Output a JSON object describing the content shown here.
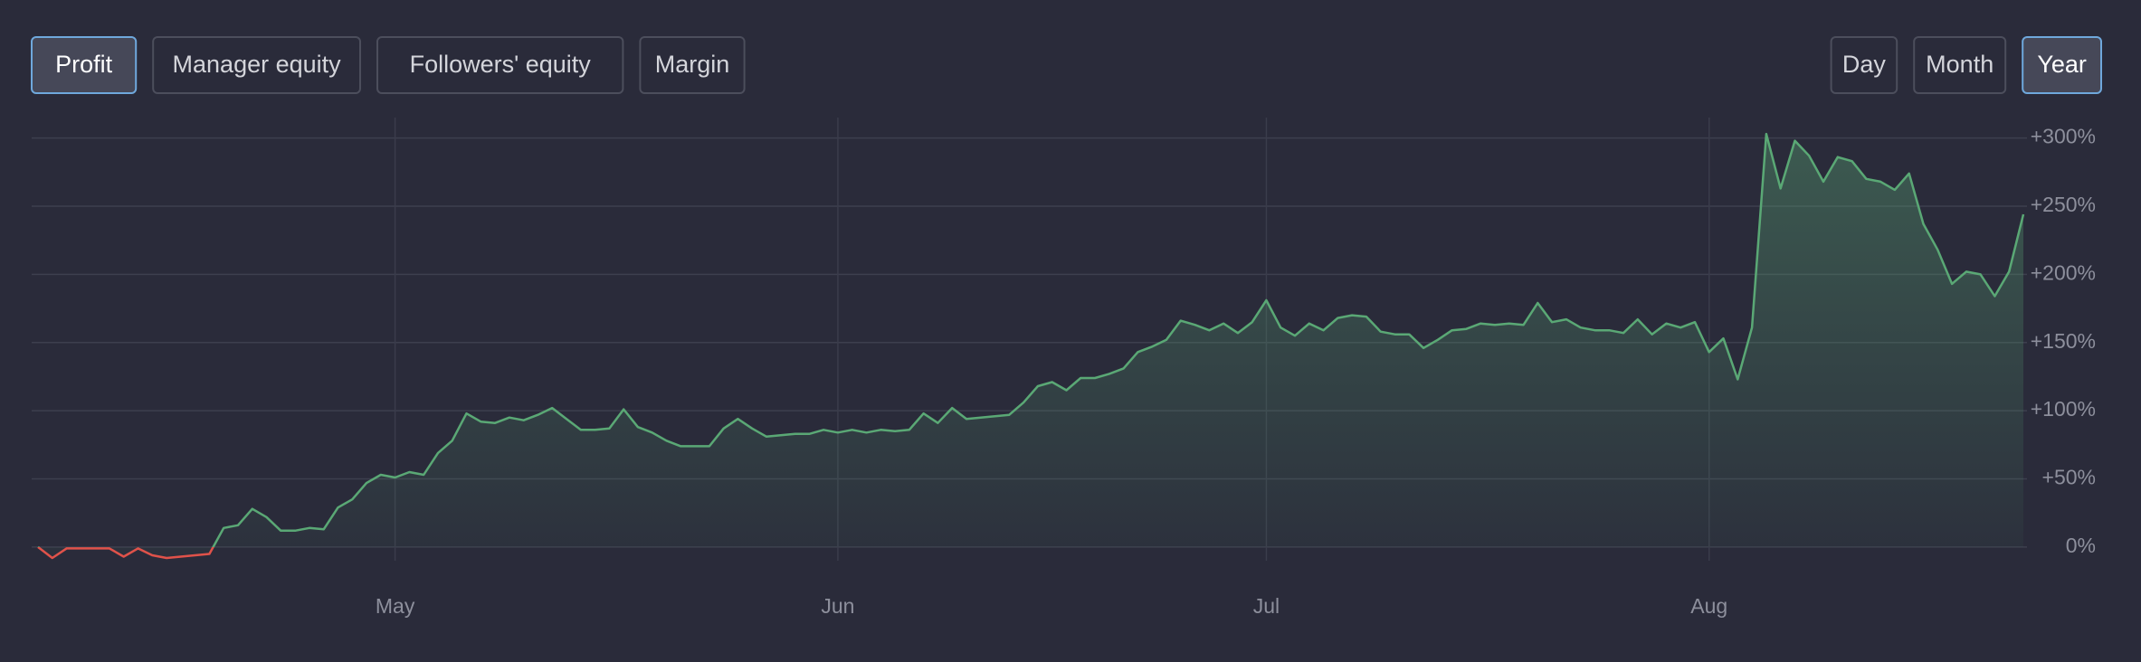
{
  "tabs": [
    {
      "label": "Profit",
      "selected": true
    },
    {
      "label": "Manager equity",
      "selected": false
    },
    {
      "label": "Followers' equity",
      "selected": false
    },
    {
      "label": "Margin",
      "selected": false
    }
  ],
  "periods": [
    {
      "label": "Day",
      "selected": false
    },
    {
      "label": "Month",
      "selected": false
    },
    {
      "label": "Year",
      "selected": true
    }
  ],
  "chart_data": {
    "type": "area",
    "series": [
      {
        "color": "#5aa875",
        "negative_color": "#e0524a",
        "values": [
          0,
          -8,
          -1,
          -1,
          -1,
          -1,
          -7,
          -1,
          -6,
          -8,
          -7,
          -6,
          -5,
          14,
          16,
          28,
          22,
          12,
          12,
          14,
          13,
          29,
          35,
          47,
          53,
          51,
          55,
          53,
          69,
          78,
          98,
          92,
          91,
          95,
          93,
          97,
          102,
          94,
          86,
          86,
          87,
          101,
          88,
          84,
          78,
          74,
          74,
          74,
          87,
          94,
          87,
          81,
          82,
          83,
          83,
          86,
          84,
          86,
          84,
          86,
          85,
          86,
          98,
          91,
          102,
          94,
          95,
          96,
          97,
          106,
          118,
          121,
          115,
          124,
          124,
          127,
          131,
          143,
          147,
          152,
          166,
          163,
          159,
          164,
          157,
          165,
          181,
          161,
          155,
          164,
          159,
          168,
          170,
          169,
          158,
          156,
          156,
          146,
          152,
          159,
          160,
          164,
          163,
          164,
          163,
          179,
          165,
          167,
          161,
          159,
          159,
          157,
          167,
          156,
          164,
          161,
          165,
          143,
          153,
          123,
          161,
          303,
          263,
          298,
          287,
          268,
          286,
          283,
          270,
          268,
          262,
          274,
          237,
          218,
          193,
          202,
          200,
          184,
          202,
          244
        ]
      }
    ],
    "xlim": [
      0,
      139
    ],
    "xticks": [
      {
        "value": 25,
        "label": "May"
      },
      {
        "value": 56,
        "label": "Jun"
      },
      {
        "value": 86,
        "label": "Jul"
      },
      {
        "value": 117,
        "label": "Aug"
      }
    ],
    "ylim": [
      -10,
      315
    ],
    "yticks": [
      {
        "value": 0,
        "label": "0%"
      },
      {
        "value": 50,
        "label": "+50%"
      },
      {
        "value": 100,
        "label": "+100%"
      },
      {
        "value": 150,
        "label": "+150%"
      },
      {
        "value": 200,
        "label": "+200%"
      },
      {
        "value": 250,
        "label": "+250%"
      },
      {
        "value": 300,
        "label": "+300%"
      }
    ],
    "grid": true
  }
}
